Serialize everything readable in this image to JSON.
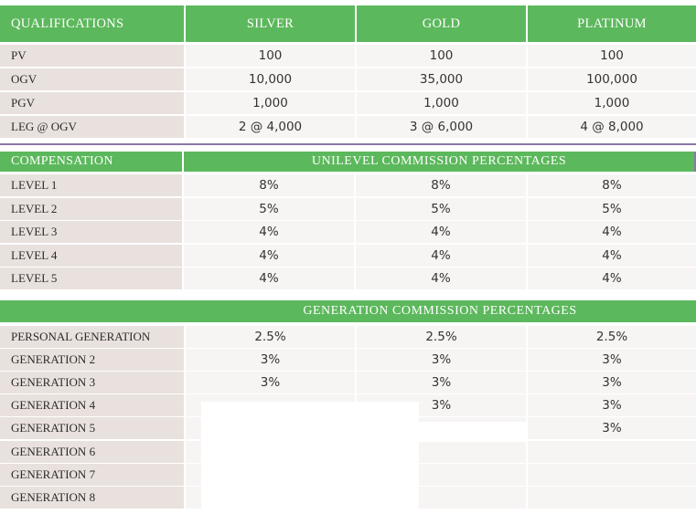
{
  "qualifications": {
    "header": [
      "QUALIFICATIONS",
      "SILVER",
      "GOLD",
      "PLATINUM"
    ],
    "rows": [
      {
        "label": "PV",
        "values": [
          "100",
          "100",
          "100"
        ]
      },
      {
        "label": "OGV",
        "values": [
          "10,000",
          "35,000",
          "100,000"
        ]
      },
      {
        "label": "PGV",
        "values": [
          "1,000",
          "1,000",
          "1,000"
        ]
      },
      {
        "label": "LEG @ OGV",
        "values": [
          "2 @ 4,000",
          "3 @ 6,000",
          "4 @ 8,000"
        ]
      }
    ]
  },
  "compensation": {
    "header_left": "COMPENSATION",
    "header_right": "UNILEVEL COMMISSION PERCENTAGES",
    "rows": [
      {
        "label": "LEVEL 1",
        "values": [
          "8%",
          "8%",
          "8%"
        ]
      },
      {
        "label": "LEVEL 2",
        "values": [
          "5%",
          "5%",
          "5%"
        ]
      },
      {
        "label": "LEVEL 3",
        "values": [
          "4%",
          "4%",
          "4%"
        ]
      },
      {
        "label": "LEVEL 4",
        "values": [
          "4%",
          "4%",
          "4%"
        ]
      },
      {
        "label": "LEVEL 5",
        "values": [
          "4%",
          "4%",
          "4%"
        ]
      }
    ]
  },
  "generation": {
    "header": "GENERATION COMMISSION PERCENTAGES",
    "rows": [
      {
        "label": "PERSONAL GENERATION",
        "values": [
          "2.5%",
          "2.5%",
          "2.5%"
        ]
      },
      {
        "label": "GENERATION 2",
        "values": [
          "3%",
          "3%",
          "3%"
        ]
      },
      {
        "label": "GENERATION 3",
        "values": [
          "3%",
          "3%",
          "3%"
        ]
      },
      {
        "label": "GENERATION 4",
        "values": [
          "",
          "3%",
          "3%"
        ]
      },
      {
        "label": "GENERATION 5",
        "values": [
          "",
          "",
          "3%"
        ]
      },
      {
        "label": "GENERATION 6",
        "values": [
          "",
          "",
          ""
        ]
      },
      {
        "label": "GENERATION 7",
        "values": [
          "",
          "",
          ""
        ]
      },
      {
        "label": "GENERATION 8",
        "values": [
          "",
          "",
          ""
        ]
      }
    ]
  },
  "colors": {
    "header_green": "#5cb85c",
    "label_bg": "#e9e1dd",
    "value_bg": "#f7f5f4",
    "divider": "#8a78a5"
  }
}
